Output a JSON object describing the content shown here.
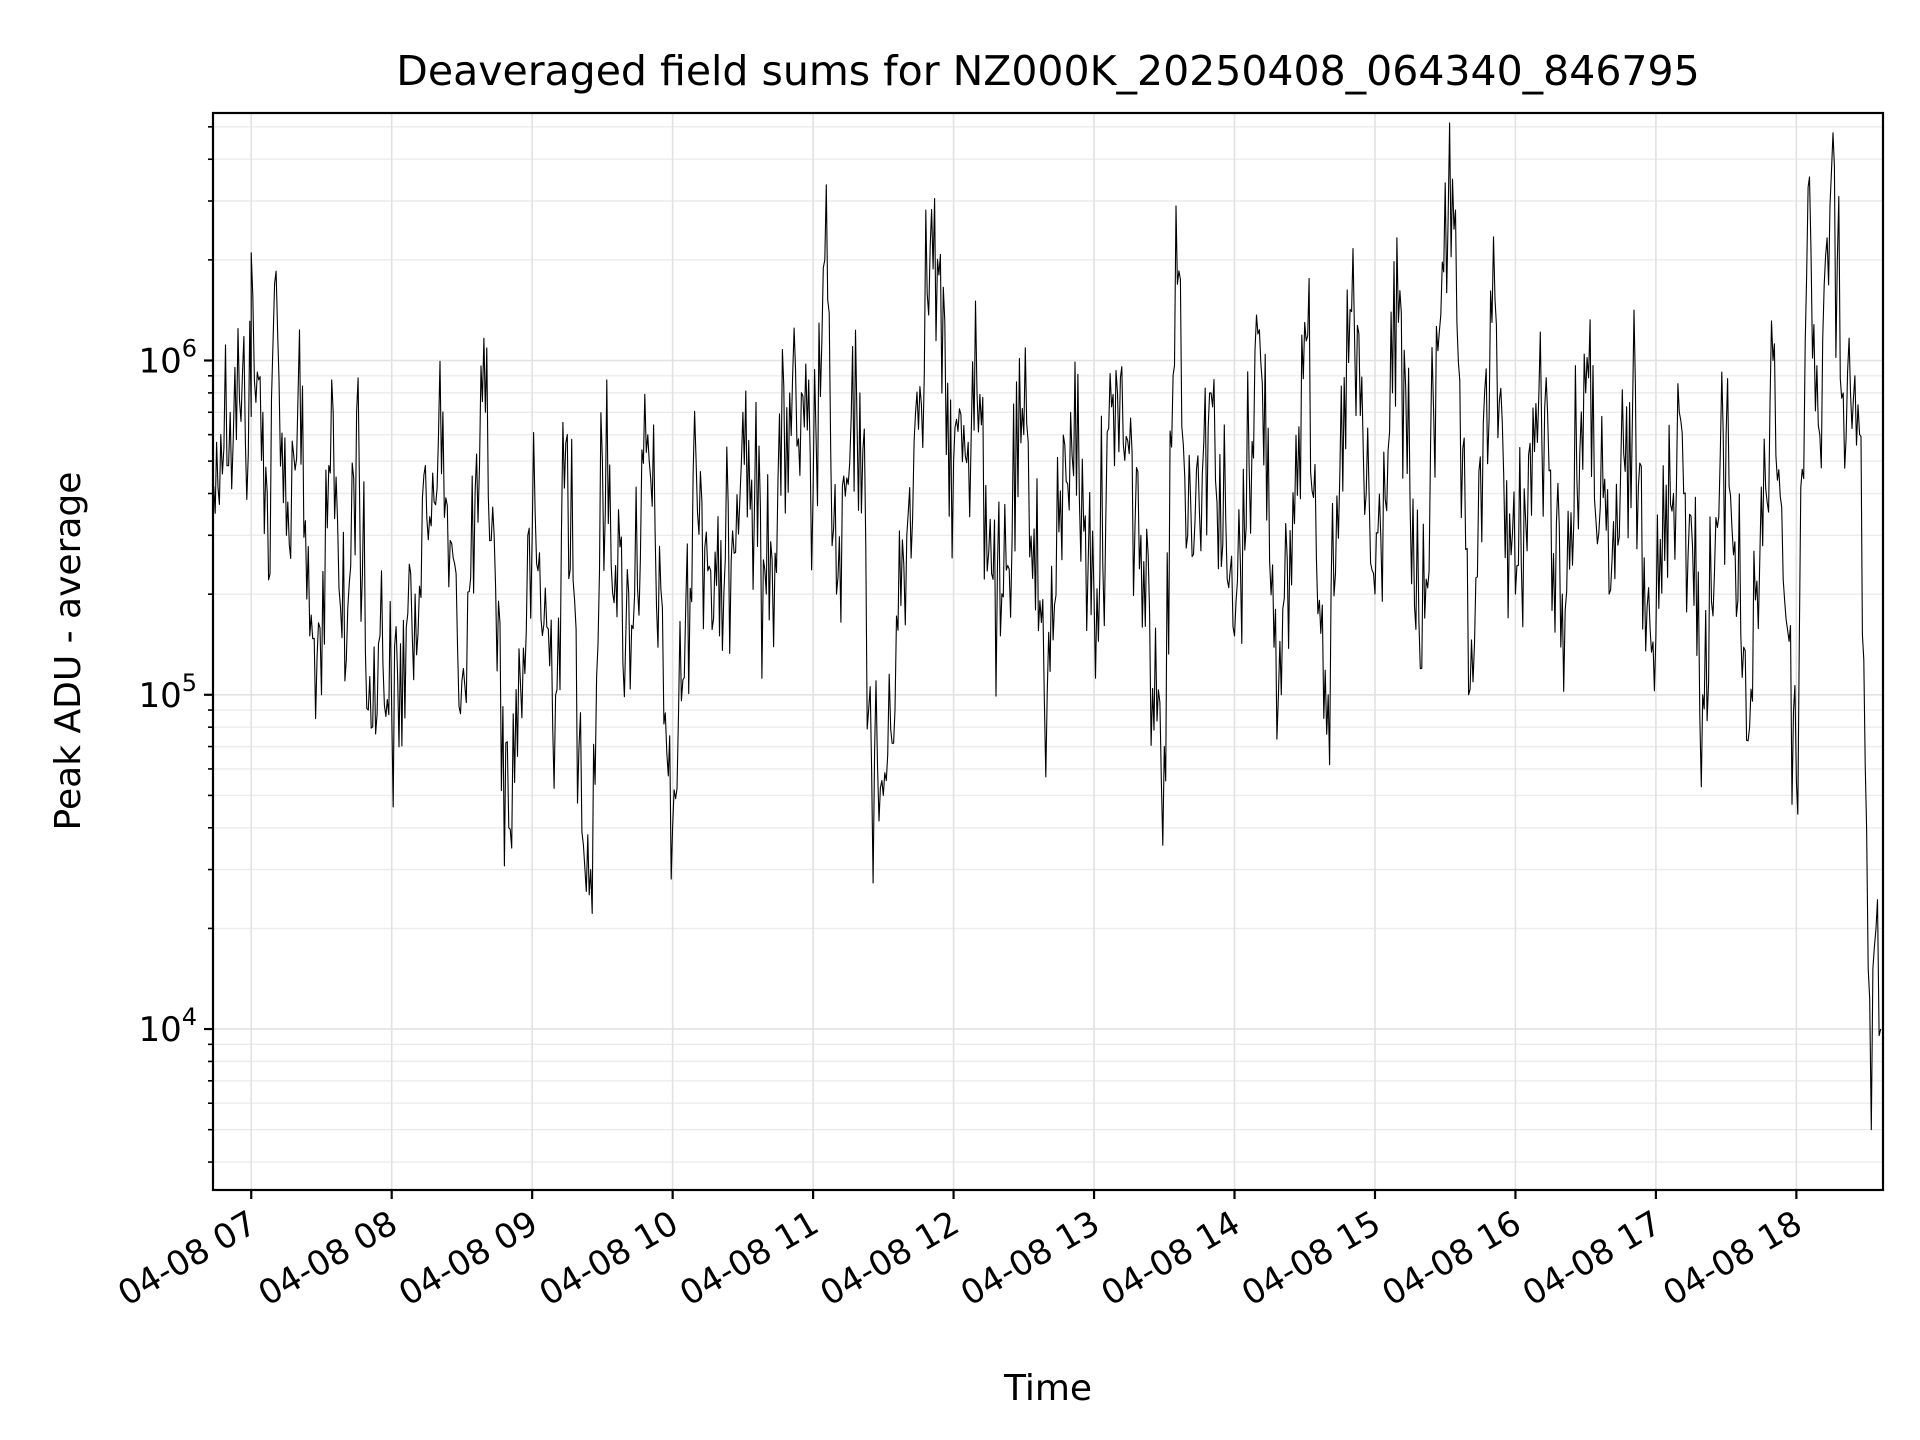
{
  "chart_data": {
    "type": "line",
    "title": "Deaveraged field sums for NZ000K_20250408_064340_846795",
    "xlabel": "Time",
    "ylabel": "Peak ADU - average",
    "x_scale": "time",
    "y_scale": "log",
    "xlim": [
      "2025-04-08 06:43:40",
      "2025-04-08 18:37"
    ],
    "ylim": [
      3300,
      5500000
    ],
    "grid": "on",
    "grid_minor": "on",
    "legend": "none",
    "x_tick_labels": [
      "04-08 07",
      "04-08 08",
      "04-08 09",
      "04-08 10",
      "04-08 11",
      "04-08 12",
      "04-08 13",
      "04-08 14",
      "04-08 15",
      "04-08 16",
      "04-08 17",
      "04-08 18"
    ],
    "x_ticks": [
      "2025-04-08 07:00",
      "2025-04-08 08:00",
      "2025-04-08 09:00",
      "2025-04-08 10:00",
      "2025-04-08 11:00",
      "2025-04-08 12:00",
      "2025-04-08 13:00",
      "2025-04-08 14:00",
      "2025-04-08 15:00",
      "2025-04-08 16:00",
      "2025-04-08 17:00",
      "2025-04-08 18:00"
    ],
    "y_ticks": [
      10000,
      100000,
      1000000
    ],
    "y_tick_labels": [
      {
        "base": "10",
        "exp": "4"
      },
      {
        "base": "10",
        "exp": "5"
      },
      {
        "base": "10",
        "exp": "6"
      }
    ],
    "series": [
      {
        "color": "#000000",
        "points": [
          [
            "2025-04-08 06:44",
            420000
          ],
          [
            "2025-04-08 06:47",
            600000
          ],
          [
            "2025-04-08 06:51",
            700000
          ],
          [
            "2025-04-08 06:55",
            760000
          ],
          [
            "2025-04-08 07:00",
            680000
          ],
          [
            "2025-04-08 07:00",
            2100000
          ],
          [
            "2025-04-08 07:02",
            750000
          ],
          [
            "2025-04-08 07:05",
            700000
          ],
          [
            "2025-04-08 07:08",
            230000
          ],
          [
            "2025-04-08 07:10",
            1700000
          ],
          [
            "2025-04-08 07:15",
            300000
          ],
          [
            "2025-04-08 07:20",
            800000
          ],
          [
            "2025-04-08 07:25",
            150000
          ],
          [
            "2025-04-08 07:30",
            100000
          ],
          [
            "2025-04-08 07:35",
            700000
          ],
          [
            "2025-04-08 07:40",
            110000
          ],
          [
            "2025-04-08 07:45",
            700000
          ],
          [
            "2025-04-08 07:50",
            90000
          ],
          [
            "2025-04-08 07:55",
            150000
          ],
          [
            "2025-04-08 08:00",
            90000
          ],
          [
            "2025-04-08 08:10",
            200000
          ],
          [
            "2025-04-08 08:20",
            600000
          ],
          [
            "2025-04-08 08:30",
            110000
          ],
          [
            "2025-04-08 08:40",
            700000
          ],
          [
            "2025-04-08 08:50",
            40000
          ],
          [
            "2025-04-08 09:00",
            300000
          ],
          [
            "2025-04-08 09:10",
            100000
          ],
          [
            "2025-04-08 09:15",
            600000
          ],
          [
            "2025-04-08 09:20",
            70000
          ],
          [
            "2025-04-08 09:25",
            30000
          ],
          [
            "2025-04-08 09:30",
            500000
          ],
          [
            "2025-04-08 09:40",
            150000
          ],
          [
            "2025-04-08 09:50",
            500000
          ],
          [
            "2025-04-08 10:00",
            40000
          ],
          [
            "2025-04-08 10:10",
            500000
          ],
          [
            "2025-04-08 10:20",
            150000
          ],
          [
            "2025-04-08 10:30",
            700000
          ],
          [
            "2025-04-08 10:40",
            200000
          ],
          [
            "2025-04-08 10:50",
            800000
          ],
          [
            "2025-04-08 11:00",
            400000
          ],
          [
            "2025-04-08 11:05",
            2000000
          ],
          [
            "2025-04-08 11:10",
            200000
          ],
          [
            "2025-04-08 11:20",
            800000
          ],
          [
            "2025-04-08 11:25",
            60000
          ],
          [
            "2025-04-08 11:30",
            50000
          ],
          [
            "2025-04-08 11:40",
            300000
          ],
          [
            "2025-04-08 11:50",
            2200000
          ],
          [
            "2025-04-08 12:00",
            500000
          ],
          [
            "2025-04-08 12:10",
            800000
          ],
          [
            "2025-04-08 12:20",
            150000
          ],
          [
            "2025-04-08 12:30",
            600000
          ],
          [
            "2025-04-08 12:40",
            100000
          ],
          [
            "2025-04-08 12:50",
            700000
          ],
          [
            "2025-04-08 13:00",
            200000
          ],
          [
            "2025-04-08 13:10",
            800000
          ],
          [
            "2025-04-08 13:20",
            300000
          ],
          [
            "2025-04-08 13:30",
            70000
          ],
          [
            "2025-04-08 13:35",
            2900000
          ],
          [
            "2025-04-08 13:40",
            300000
          ],
          [
            "2025-04-08 13:50",
            800000
          ],
          [
            "2025-04-08 14:00",
            150000
          ],
          [
            "2025-04-08 14:10",
            1200000
          ],
          [
            "2025-04-08 14:20",
            100000
          ],
          [
            "2025-04-08 14:30",
            1300000
          ],
          [
            "2025-04-08 14:40",
            100000
          ],
          [
            "2025-04-08 14:50",
            1400000
          ],
          [
            "2025-04-08 15:00",
            200000
          ],
          [
            "2025-04-08 15:10",
            1300000
          ],
          [
            "2025-04-08 15:20",
            120000
          ],
          [
            "2025-04-08 15:30",
            3400000
          ],
          [
            "2025-04-08 15:35",
            1300000
          ],
          [
            "2025-04-08 15:40",
            100000
          ],
          [
            "2025-04-08 15:50",
            1300000
          ],
          [
            "2025-04-08 16:00",
            200000
          ],
          [
            "2025-04-08 16:10",
            800000
          ],
          [
            "2025-04-08 16:20",
            200000
          ],
          [
            "2025-04-08 16:30",
            800000
          ],
          [
            "2025-04-08 16:40",
            200000
          ],
          [
            "2025-04-08 16:50",
            700000
          ],
          [
            "2025-04-08 17:00",
            150000
          ],
          [
            "2025-04-08 17:10",
            700000
          ],
          [
            "2025-04-08 17:20",
            100000
          ],
          [
            "2025-04-08 17:30",
            600000
          ],
          [
            "2025-04-08 17:40",
            80000
          ],
          [
            "2025-04-08 17:50",
            1000000
          ],
          [
            "2025-04-08 18:00",
            55000
          ],
          [
            "2025-04-08 18:05",
            3300000
          ],
          [
            "2025-04-08 18:10",
            600000
          ],
          [
            "2025-04-08 18:15",
            3700000
          ],
          [
            "2025-04-08 18:20",
            800000
          ],
          [
            "2025-04-08 18:25",
            900000
          ],
          [
            "2025-04-08 18:27",
            600000
          ],
          [
            "2025-04-08 18:30",
            40000
          ],
          [
            "2025-04-08 18:32",
            5000
          ],
          [
            "2025-04-08 18:34",
            20000
          ],
          [
            "2025-04-08 18:36",
            10000
          ]
        ]
      }
    ]
  }
}
